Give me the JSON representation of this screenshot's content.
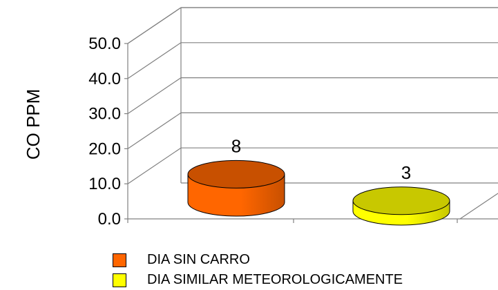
{
  "chart_data": {
    "type": "bar",
    "style": "3d-cylinder",
    "categories": [
      "DIA SIN CARRO",
      "DIA SIMILAR METEOROLOGICAMENTE"
    ],
    "values": [
      8,
      3
    ],
    "data_labels": [
      "8",
      "3"
    ],
    "ylabel": "CO PPM",
    "xlabel": "",
    "ylim": [
      0,
      50
    ],
    "yticks": [
      "0.0",
      "10.0",
      "20.0",
      "30.0",
      "40.0",
      "50.0"
    ],
    "grid": true,
    "legend": "bottom",
    "colors": [
      "#ff6600",
      "#ffff00"
    ],
    "top_colors": [
      "#c85000",
      "#c8c800"
    ]
  }
}
